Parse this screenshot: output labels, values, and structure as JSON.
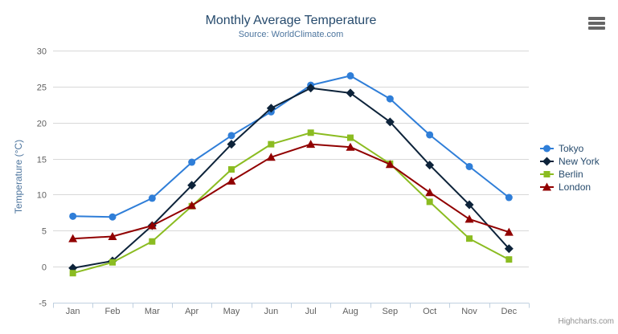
{
  "title": {
    "text": "Monthly Average Temperature"
  },
  "subtitle": {
    "text": "Source: WorldClimate.com"
  },
  "credit": {
    "text": "Highcharts.com"
  },
  "icons": {
    "export_menu": "hamburger-menu-icon"
  },
  "colors": {
    "title": "#274b6d",
    "subtitle": "#4d759e",
    "axis_title": "#4d759e",
    "tick_label": "#606060",
    "gridline": "#d8d8d8",
    "axis_line": "#c0d0e0",
    "legend_text": "#274b6d",
    "credit_text": "#909090",
    "menu_icon": "#666666"
  },
  "chart_data": {
    "type": "line",
    "title": "Monthly Average Temperature",
    "subtitle": "Source: WorldClimate.com",
    "categories": [
      "Jan",
      "Feb",
      "Mar",
      "Apr",
      "May",
      "Jun",
      "Jul",
      "Aug",
      "Sep",
      "Oct",
      "Nov",
      "Dec"
    ],
    "series": [
      {
        "name": "Tokyo",
        "color": "#2f7ed8",
        "marker": "circle",
        "values": [
          7.0,
          6.9,
          9.5,
          14.5,
          18.2,
          21.5,
          25.2,
          26.5,
          23.3,
          18.3,
          13.9,
          9.6
        ]
      },
      {
        "name": "New York",
        "color": "#0d233a",
        "marker": "diamond",
        "values": [
          -0.2,
          0.8,
          5.7,
          11.3,
          17.0,
          22.0,
          24.8,
          24.1,
          20.1,
          14.1,
          8.6,
          2.5
        ]
      },
      {
        "name": "Berlin",
        "color": "#8bbc21",
        "marker": "square",
        "values": [
          -0.9,
          0.6,
          3.5,
          8.4,
          13.5,
          17.0,
          18.6,
          17.9,
          14.3,
          9.0,
          3.9,
          1.0
        ]
      },
      {
        "name": "London",
        "color": "#910000",
        "marker": "triangle",
        "values": [
          3.9,
          4.2,
          5.7,
          8.5,
          11.9,
          15.2,
          17.0,
          16.6,
          14.2,
          10.3,
          6.6,
          4.8
        ]
      }
    ],
    "xlabel": "",
    "ylabel": "Temperature (°C)",
    "ylim": [
      -5,
      30
    ],
    "ytick_step": 5,
    "yticks": [
      -5,
      0,
      5,
      10,
      15,
      20,
      25,
      30
    ],
    "grid": true,
    "legend_position": "right"
  }
}
